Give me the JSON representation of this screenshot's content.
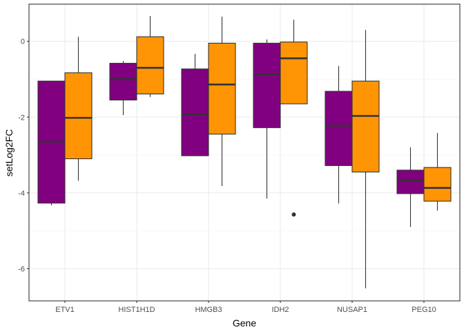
{
  "chart_data": {
    "type": "boxplot",
    "xlabel": "Gene",
    "ylabel": "setLog2FC",
    "categories": [
      "ETV1",
      "HIST1H1D",
      "HMGB3",
      "IDH2",
      "NUSAP1",
      "PEG10"
    ],
    "ylim": [
      -6.85,
      0.98
    ],
    "yticks": [
      0,
      -2,
      -4,
      -6
    ],
    "grid": true,
    "legend": "none",
    "series": [
      {
        "color": "#800080",
        "boxes": [
          {
            "category": "ETV1",
            "whisker_low": -4.33,
            "q1": -4.27,
            "median": -2.65,
            "q3": -1.05,
            "whisker_high": -1.05,
            "outliers": []
          },
          {
            "category": "HIST1H1D",
            "whisker_low": -1.95,
            "q1": -1.55,
            "median": -1.0,
            "q3": -0.58,
            "whisker_high": -0.52,
            "outliers": []
          },
          {
            "category": "HMGB3",
            "whisker_low": -3.02,
            "q1": -3.02,
            "median": -1.93,
            "q3": -0.73,
            "whisker_high": -0.33,
            "outliers": []
          },
          {
            "category": "IDH2",
            "whisker_low": -4.15,
            "q1": -2.28,
            "median": -0.87,
            "q3": -0.05,
            "whisker_high": 0.05,
            "outliers": []
          },
          {
            "category": "NUSAP1",
            "whisker_low": -4.28,
            "q1": -3.28,
            "median": -2.23,
            "q3": -1.32,
            "whisker_high": -0.65,
            "outliers": []
          },
          {
            "category": "PEG10",
            "whisker_low": -4.9,
            "q1": -4.02,
            "median": -3.67,
            "q3": -3.4,
            "whisker_high": -2.8,
            "outliers": []
          }
        ]
      },
      {
        "color": "#FF9505",
        "boxes": [
          {
            "category": "ETV1",
            "whisker_low": -3.68,
            "q1": -3.1,
            "median": -2.02,
            "q3": -0.83,
            "whisker_high": 0.12,
            "outliers": []
          },
          {
            "category": "HIST1H1D",
            "whisker_low": -1.47,
            "q1": -1.39,
            "median": -0.7,
            "q3": 0.12,
            "whisker_high": 0.67,
            "outliers": []
          },
          {
            "category": "HMGB3",
            "whisker_low": -3.82,
            "q1": -2.45,
            "median": -1.14,
            "q3": -0.05,
            "whisker_high": 0.65,
            "outliers": []
          },
          {
            "category": "IDH2",
            "whisker_low": -1.65,
            "q1": -1.65,
            "median": -0.45,
            "q3": -0.02,
            "whisker_high": 0.57,
            "outliers": [
              -4.57
            ]
          },
          {
            "category": "NUSAP1",
            "whisker_low": -6.52,
            "q1": -3.45,
            "median": -1.97,
            "q3": -1.05,
            "whisker_high": 0.3,
            "outliers": []
          },
          {
            "category": "PEG10",
            "whisker_low": -4.47,
            "q1": -4.22,
            "median": -3.87,
            "q3": -3.33,
            "whisker_high": -2.42,
            "outliers": []
          }
        ]
      }
    ]
  }
}
